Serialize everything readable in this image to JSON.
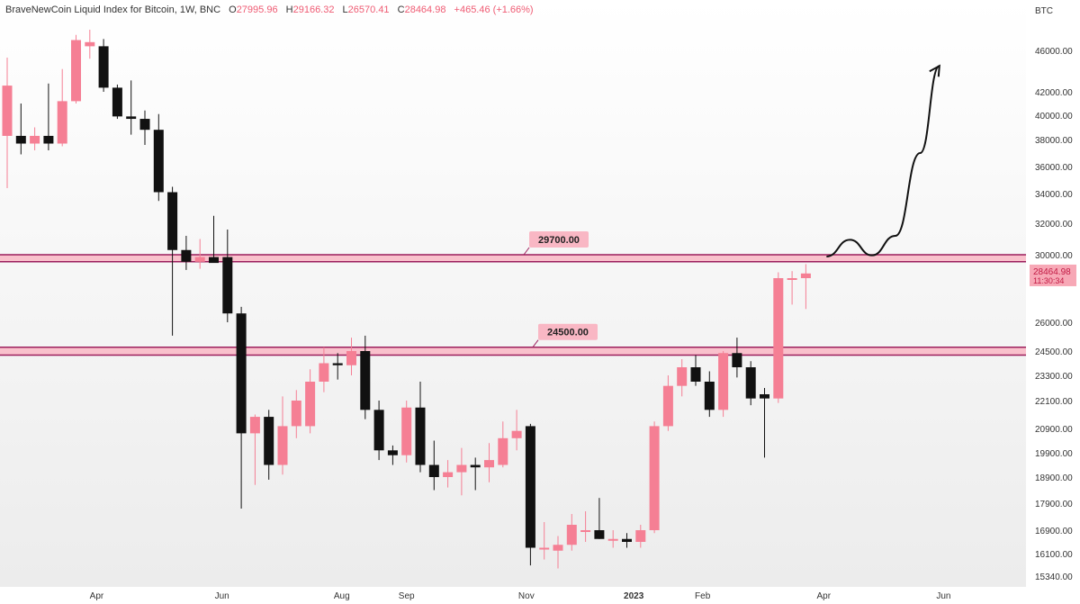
{
  "header": {
    "title": "BraveNewCoin Liquid Index for Bitcoin, 1W, BNC",
    "ohlc": [
      {
        "label": "O",
        "value": "27995.96"
      },
      {
        "label": "H",
        "value": "29166.32"
      },
      {
        "label": "L",
        "value": "26570.41"
      },
      {
        "label": "C",
        "value": "28464.98"
      }
    ],
    "change": "+465.46 (+1.66%)"
  },
  "chart_data": {
    "type": "candlestick",
    "currency": "BTC",
    "grid": false,
    "ylim": [
      15340,
      48000
    ],
    "y_ticks": [
      15340,
      16100,
      16900,
      17900,
      18900,
      19900,
      20900,
      22100,
      23300,
      24500,
      26000,
      28000,
      30000,
      32000,
      34000,
      36000,
      38000,
      40000,
      42000,
      46000
    ],
    "y_tick_labels": [
      "15340.00",
      "16100.00",
      "16900.00",
      "17900.00",
      "18900.00",
      "19900.00",
      "20900.00",
      "22100.00",
      "23300.00",
      "24500.00",
      "26000.00",
      "28000.00",
      "30000.00",
      "32000.00",
      "34000.00",
      "36000.00",
      "38000.00",
      "40000.00",
      "42000.00",
      "46000.00"
    ],
    "x_labels": [
      {
        "text": "Apr",
        "week": 6.5
      },
      {
        "text": "Jun",
        "week": 15.6
      },
      {
        "text": "Aug",
        "week": 24.3
      },
      {
        "text": "Sep",
        "week": 29.0
      },
      {
        "text": "Nov",
        "week": 37.7
      },
      {
        "text": "2023",
        "week": 45.5,
        "bold": true
      },
      {
        "text": "Feb",
        "week": 50.5
      },
      {
        "text": "Apr",
        "week": 59.3
      },
      {
        "text": "Jun",
        "week": 68.0
      }
    ],
    "candles": [
      {
        "o": 38300,
        "h": 45300,
        "l": 34400,
        "c": 42600
      },
      {
        "o": 38300,
        "h": 41000,
        "l": 36900,
        "c": 37700
      },
      {
        "o": 37700,
        "h": 39000,
        "l": 37200,
        "c": 38300
      },
      {
        "o": 38300,
        "h": 42800,
        "l": 37200,
        "c": 37700
      },
      {
        "o": 37700,
        "h": 44200,
        "l": 37500,
        "c": 41200
      },
      {
        "o": 41200,
        "h": 47500,
        "l": 41000,
        "c": 47000
      },
      {
        "o": 46400,
        "h": 48000,
        "l": 45200,
        "c": 46800
      },
      {
        "o": 46400,
        "h": 47100,
        "l": 42000,
        "c": 42400
      },
      {
        "o": 42400,
        "h": 42700,
        "l": 39700,
        "c": 39900
      },
      {
        "o": 39900,
        "h": 43100,
        "l": 38400,
        "c": 39700
      },
      {
        "o": 39700,
        "h": 40400,
        "l": 37600,
        "c": 38800
      },
      {
        "o": 38800,
        "h": 40100,
        "l": 33500,
        "c": 34100
      },
      {
        "o": 34100,
        "h": 34500,
        "l": 25300,
        "c": 30300
      },
      {
        "o": 30300,
        "h": 31200,
        "l": 28700,
        "c": 29400
      },
      {
        "o": 29400,
        "h": 31000,
        "l": 28800,
        "c": 29800
      },
      {
        "o": 29800,
        "h": 32500,
        "l": 29400,
        "c": 29300
      },
      {
        "o": 29800,
        "h": 31600,
        "l": 26000,
        "c": 26400
      },
      {
        "o": 26400,
        "h": 26700,
        "l": 17700,
        "c": 20700
      },
      {
        "o": 20700,
        "h": 21500,
        "l": 18600,
        "c": 21400
      },
      {
        "o": 21400,
        "h": 21700,
        "l": 18800,
        "c": 19400
      },
      {
        "o": 19400,
        "h": 22300,
        "l": 19000,
        "c": 21000
      },
      {
        "o": 21000,
        "h": 22600,
        "l": 20500,
        "c": 22100
      },
      {
        "o": 21000,
        "h": 23600,
        "l": 20700,
        "c": 23000
      },
      {
        "o": 23000,
        "h": 24700,
        "l": 22500,
        "c": 23900
      },
      {
        "o": 23900,
        "h": 24400,
        "l": 23100,
        "c": 23800
      },
      {
        "o": 23800,
        "h": 25200,
        "l": 23300,
        "c": 24500
      },
      {
        "o": 24500,
        "h": 25300,
        "l": 21300,
        "c": 21700
      },
      {
        "o": 21700,
        "h": 22100,
        "l": 19600,
        "c": 20000
      },
      {
        "o": 20000,
        "h": 20200,
        "l": 19400,
        "c": 19800
      },
      {
        "o": 19800,
        "h": 22100,
        "l": 19500,
        "c": 21800
      },
      {
        "o": 21800,
        "h": 23000,
        "l": 19100,
        "c": 19400
      },
      {
        "o": 19400,
        "h": 20400,
        "l": 18400,
        "c": 18900
      },
      {
        "o": 18900,
        "h": 19600,
        "l": 18500,
        "c": 19100
      },
      {
        "o": 19100,
        "h": 20100,
        "l": 18200,
        "c": 19400
      },
      {
        "o": 19400,
        "h": 19700,
        "l": 18400,
        "c": 19300
      },
      {
        "o": 19300,
        "h": 20300,
        "l": 18700,
        "c": 19600
      },
      {
        "o": 19400,
        "h": 21200,
        "l": 19300,
        "c": 20500
      },
      {
        "o": 20500,
        "h": 21700,
        "l": 20000,
        "c": 20800
      },
      {
        "o": 21000,
        "h": 21100,
        "l": 15700,
        "c": 16300
      },
      {
        "o": 16300,
        "h": 17200,
        "l": 15900,
        "c": 16300
      },
      {
        "o": 16200,
        "h": 16700,
        "l": 15600,
        "c": 16400
      },
      {
        "o": 16400,
        "h": 17500,
        "l": 16200,
        "c": 17100
      },
      {
        "o": 16900,
        "h": 17600,
        "l": 16500,
        "c": 16900
      },
      {
        "o": 16900,
        "h": 18100,
        "l": 16600,
        "c": 16600
      },
      {
        "o": 16600,
        "h": 16900,
        "l": 16300,
        "c": 16600
      },
      {
        "o": 16600,
        "h": 16800,
        "l": 16300,
        "c": 16500
      },
      {
        "o": 16500,
        "h": 17100,
        "l": 16300,
        "c": 16900
      },
      {
        "o": 16900,
        "h": 21200,
        "l": 16800,
        "c": 21000
      },
      {
        "o": 21000,
        "h": 23300,
        "l": 20800,
        "c": 22800
      },
      {
        "o": 22800,
        "h": 24100,
        "l": 22300,
        "c": 23700
      },
      {
        "o": 23700,
        "h": 24300,
        "l": 22800,
        "c": 23000
      },
      {
        "o": 23000,
        "h": 23500,
        "l": 21400,
        "c": 21700
      },
      {
        "o": 21700,
        "h": 24500,
        "l": 21400,
        "c": 24400
      },
      {
        "o": 24400,
        "h": 25200,
        "l": 23200,
        "c": 23700
      },
      {
        "o": 23700,
        "h": 24000,
        "l": 21900,
        "c": 22200
      },
      {
        "o": 22400,
        "h": 22700,
        "l": 19700,
        "c": 22200
      },
      {
        "o": 22200,
        "h": 28500,
        "l": 22000,
        "c": 28000
      },
      {
        "o": 28000,
        "h": 28600,
        "l": 26800,
        "c": 28000
      },
      {
        "o": 28000,
        "h": 29200,
        "l": 26600,
        "c": 28400
      }
    ],
    "zones": [
      {
        "price": 29700,
        "low": 29400,
        "high": 30000,
        "label": "29700.00"
      },
      {
        "price": 24500,
        "low": 24300,
        "high": 24700,
        "label": "24500.00"
      }
    ],
    "last_price": {
      "value": "28464.98",
      "countdown": "11:30:34"
    },
    "projection": [
      {
        "week": 59.5,
        "price": 29850
      },
      {
        "week": 61.2,
        "price": 30950
      },
      {
        "week": 62.8,
        "price": 29950
      },
      {
        "week": 64.5,
        "price": 31200
      },
      {
        "week": 66.3,
        "price": 37000
      },
      {
        "week": 67.7,
        "price": 44500
      }
    ],
    "colors": {
      "up": "#f57f94",
      "down": "#111111",
      "zone_fill": "#f9b7c4",
      "zone_line": "#9c1f5d",
      "zone_label_bg": "#f9b7c4",
      "price_label_bg": "#f7a8b6",
      "price_label_text": "#c21a44"
    }
  }
}
